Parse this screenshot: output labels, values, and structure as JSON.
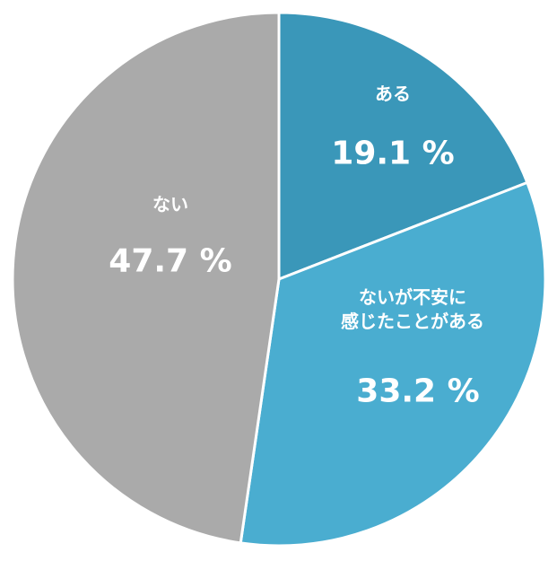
{
  "chart_data": {
    "type": "pie",
    "categories": [
      "ある",
      "ないが不安に\n感じたことがある",
      "ない"
    ],
    "values": [
      19.1,
      33.2,
      47.7
    ],
    "value_labels": [
      "19.1 %",
      "33.2 %",
      "47.7 %"
    ],
    "colors": [
      "#3a97b9",
      "#4aadd0",
      "#aaaaaa"
    ]
  }
}
